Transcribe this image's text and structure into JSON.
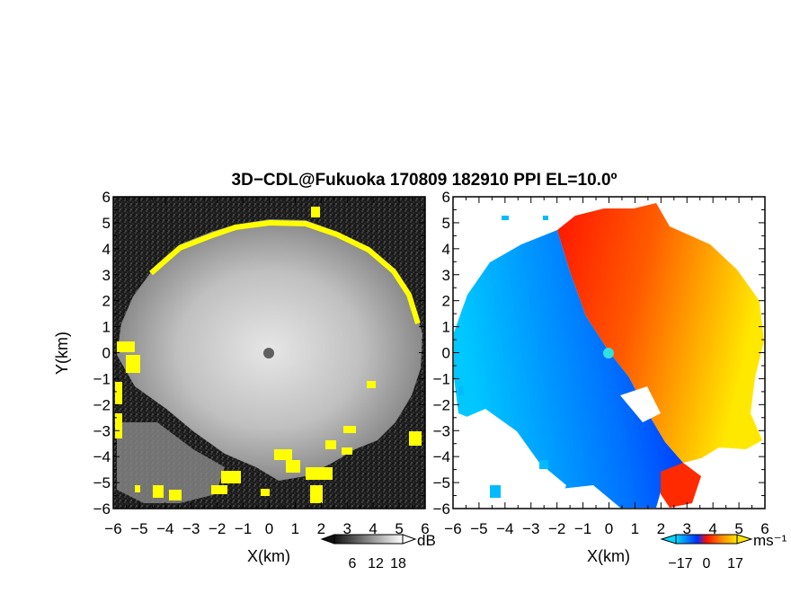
{
  "title": "3D−CDL@Fukuoka 170809 182910 PPI EL=10.0º",
  "chart_data": [
    {
      "type": "heatmap",
      "panel": "left",
      "quantity": "SNR",
      "xlabel": "X(km)",
      "ylabel": "Y(km)",
      "xlim": [
        -6,
        6
      ],
      "ylim": [
        -6,
        6
      ],
      "x_ticks": [
        "−6",
        "−5",
        "−4",
        "−3",
        "−2",
        "−1",
        "0",
        "1",
        "2",
        "3",
        "4",
        "5",
        "6"
      ],
      "y_ticks": [
        "6",
        "5",
        "4",
        "3",
        "2",
        "1",
        "0",
        "−1",
        "−2",
        "−3",
        "−4",
        "−5",
        "−6"
      ],
      "radar_center": [
        0,
        0
      ],
      "echo_edge_radius_km": 5.0,
      "colors": {
        "background": "#1e1e1e",
        "echo": "#b9b9b9",
        "edge": "#ffff00",
        "center": "#606060"
      },
      "colorbar": {
        "unit": "dB",
        "ticks": [
          "6",
          "12",
          "18"
        ],
        "extend": "both",
        "colormap": "grayscale"
      }
    },
    {
      "type": "heatmap",
      "panel": "right",
      "quantity": "radial velocity",
      "xlabel": "X(km)",
      "ylabel": "",
      "xlim": [
        -6,
        6
      ],
      "ylim": [
        -6,
        6
      ],
      "x_ticks": [
        "−6",
        "−5",
        "−4",
        "−3",
        "−2",
        "−1",
        "0",
        "1",
        "2",
        "3",
        "4",
        "5",
        "6"
      ],
      "y_ticks": [
        "6",
        "5",
        "4",
        "3",
        "2",
        "1",
        "0",
        "−1",
        "−2",
        "−3",
        "−4",
        "−5",
        "−6"
      ],
      "velocity_range": [
        -17,
        17
      ],
      "colors": {
        "negative_far": "#00bbff",
        "negative_near": "#0030ff",
        "positive_near": "#ff1e00",
        "positive_far": "#ffe000",
        "center": "#30e0e0"
      },
      "colorbar": {
        "unit": "ms⁻¹",
        "ticks": [
          "−17",
          "0",
          "17"
        ],
        "extend": "both",
        "colormap": "blue-red-yellow"
      }
    }
  ]
}
